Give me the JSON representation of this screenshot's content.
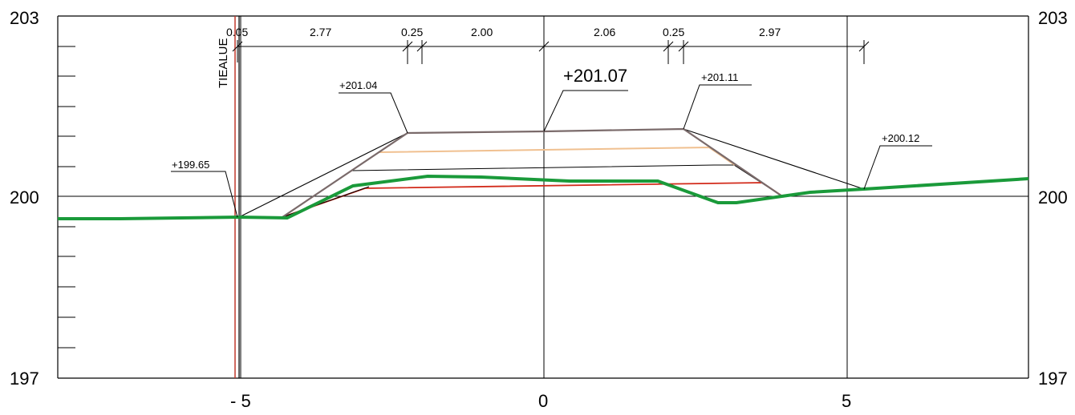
{
  "left_axis": {
    "top": "203",
    "mid": "200",
    "bottom": "197"
  },
  "right_axis": {
    "top": "203",
    "mid": "200",
    "bottom": "197"
  },
  "x_axis": {
    "neg5": "- 5",
    "zero": "0",
    "pos5": "5"
  },
  "tie_label": "TIEALUE",
  "dimensions": [
    "0.05",
    "2.77",
    "0.25",
    "2.00",
    "2.06",
    "0.25",
    "2.97"
  ],
  "elevations": {
    "left_tie": "+199.65",
    "left_shoulder": "+201.04",
    "center": "+201.07",
    "right_shoulder": "+201.11",
    "right_tie": "+200.12"
  },
  "colors": {
    "ground": "#1a9a3a",
    "road_outline": "#7a6a6a",
    "subgrade": "#d22a1a",
    "layer": "#f0c090",
    "tie_line": "#c0392b",
    "frame": "#000000"
  }
}
